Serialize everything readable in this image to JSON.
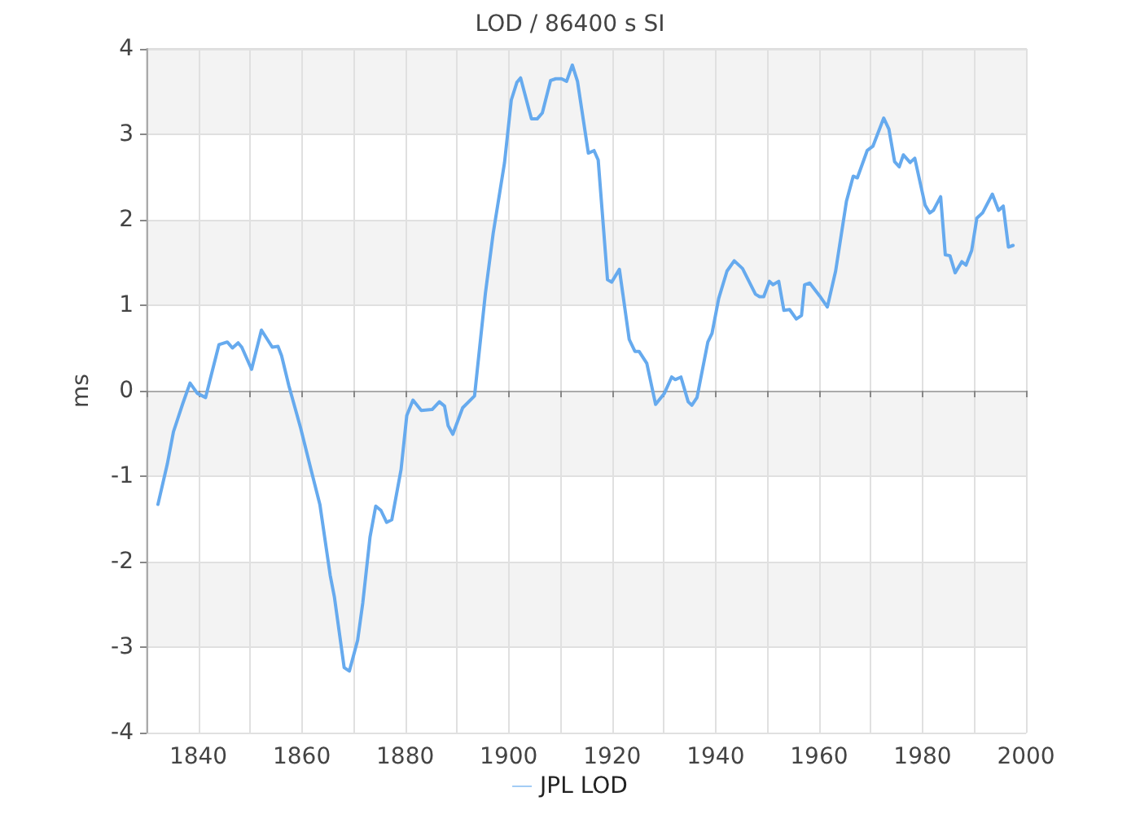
{
  "chart_data": {
    "type": "line",
    "title": "LOD / 86400 s SI",
    "ylabel": "ms",
    "xlim": [
      1830,
      2000
    ],
    "xticks": [
      {
        "value": 1830,
        "label": null
      },
      1840,
      {
        "value": 1850,
        "label": null
      },
      1860,
      {
        "value": 1870,
        "label": null
      },
      1880,
      {
        "value": 1890,
        "label": null
      },
      1900,
      {
        "value": 1910,
        "label": null
      },
      1920,
      {
        "value": 1930,
        "label": null
      },
      1940,
      {
        "value": 1950,
        "label": null
      },
      1960,
      {
        "value": 1970,
        "label": null
      },
      1980,
      {
        "value": 1990,
        "label": null
      },
      2000
    ],
    "ylim": [
      -4,
      4
    ],
    "yticks": [
      -4,
      -3,
      -2,
      -1,
      0,
      1,
      2,
      3,
      4
    ],
    "grid": true,
    "legend": "bottom",
    "marker": "none",
    "line_style": "solid",
    "series": [
      {
        "name": "JPL LOD",
        "color": "#66aaee",
        "x": [
          1832.2,
          1834,
          1835.2,
          1837,
          1838.4,
          1839.8,
          1841.4,
          1844,
          1845.6,
          1846.6,
          1847.7,
          1848.4,
          1850.3,
          1852.2,
          1854.3,
          1855.4,
          1856.1,
          1857.5,
          1859.8,
          1861.9,
          1863.5,
          1865.5,
          1866.3,
          1868.2,
          1869.2,
          1870.8,
          1871.8,
          1873.2,
          1874.3,
          1875.3,
          1876.4,
          1877.4,
          1879.2,
          1880.3,
          1881.5,
          1883.1,
          1885.2,
          1886.6,
          1887.6,
          1888.3,
          1889.2,
          1891.1,
          1893.4,
          1895.5,
          1897,
          1899.2,
          1900.5,
          1901.6,
          1902.3,
          1904.4,
          1905.5,
          1906.5,
          1908.1,
          1909.1,
          1910.2,
          1911.2,
          1912.3,
          1913.3,
          1915.4,
          1916.5,
          1917.3,
          1919.1,
          1919.9,
          1921.4,
          1923.3,
          1924.4,
          1925.2,
          1926.7,
          1928.4,
          1930.1,
          1931.5,
          1932.2,
          1933.3,
          1934.7,
          1935.4,
          1936.4,
          1938.5,
          1939.3,
          1940.6,
          1942.2,
          1943.6,
          1945.2,
          1947.7,
          1948.5,
          1949.3,
          1950.4,
          1951.1,
          1952.2,
          1953.2,
          1954.3,
          1955.6,
          1956.6,
          1957.2,
          1958.2,
          1960.1,
          1961.6,
          1963.2,
          1965.3,
          1966.6,
          1967.4,
          1969.3,
          1970.4,
          1972.5,
          1973.5,
          1974.6,
          1975.5,
          1976.3,
          1977.6,
          1978.5,
          1980.5,
          1981.4,
          1982.1,
          1983.5,
          1984.4,
          1985.3,
          1986.3,
          1987.6,
          1988.4,
          1989.5,
          1990.5,
          1991.6,
          1993.5,
          1994.7,
          1995.6,
          1996.6,
          1997.5
        ],
        "values": [
          -1.33,
          -0.86,
          -0.48,
          -0.15,
          0.09,
          -0.03,
          -0.08,
          0.54,
          0.57,
          0.5,
          0.56,
          0.51,
          0.25,
          0.71,
          0.51,
          0.52,
          0.41,
          0.06,
          -0.44,
          -0.95,
          -1.33,
          -2.16,
          -2.41,
          -3.24,
          -3.28,
          -2.92,
          -2.48,
          -1.71,
          -1.35,
          -1.4,
          -1.54,
          -1.51,
          -0.92,
          -0.29,
          -0.11,
          -0.23,
          -0.22,
          -0.13,
          -0.18,
          -0.41,
          -0.51,
          -0.2,
          -0.06,
          1.14,
          1.84,
          2.67,
          3.4,
          3.61,
          3.66,
          3.18,
          3.18,
          3.25,
          3.63,
          3.65,
          3.65,
          3.62,
          3.81,
          3.62,
          2.78,
          2.81,
          2.7,
          1.3,
          1.27,
          1.42,
          0.6,
          0.46,
          0.46,
          0.32,
          -0.16,
          -0.03,
          0.16,
          0.13,
          0.16,
          -0.13,
          -0.17,
          -0.08,
          0.57,
          0.67,
          1.08,
          1.4,
          1.52,
          1.43,
          1.13,
          1.1,
          1.1,
          1.28,
          1.24,
          1.28,
          0.94,
          0.95,
          0.84,
          0.88,
          1.24,
          1.26,
          1.11,
          0.98,
          1.4,
          2.22,
          2.51,
          2.49,
          2.81,
          2.86,
          3.19,
          3.06,
          2.68,
          2.62,
          2.76,
          2.67,
          2.72,
          2.17,
          2.08,
          2.11,
          2.27,
          1.59,
          1.58,
          1.38,
          1.51,
          1.47,
          1.64,
          2.02,
          2.08,
          2.3,
          2.11,
          2.16,
          1.68,
          1.7
        ]
      }
    ]
  }
}
